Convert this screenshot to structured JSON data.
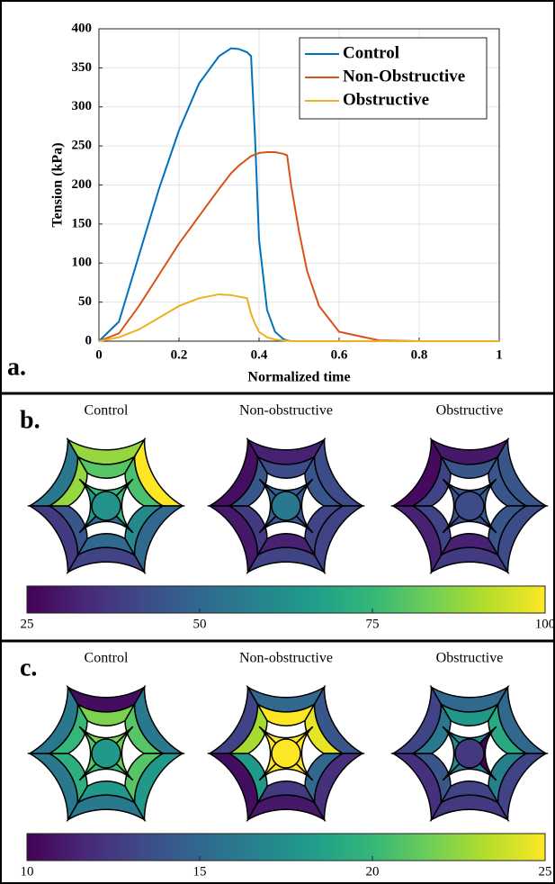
{
  "chart_data": [
    {
      "type": "line",
      "label": "a.",
      "xlabel": "Normalized time",
      "ylabel": "Tension (kPa)",
      "x": [
        0,
        0.05,
        0.1,
        0.15,
        0.2,
        0.25,
        0.3,
        0.33,
        0.35,
        0.37,
        0.38,
        0.39,
        0.4,
        0.42,
        0.44,
        0.46,
        0.47,
        0.48,
        0.5,
        0.52,
        0.55,
        0.6,
        0.7,
        0.8,
        1
      ],
      "series": [
        {
          "name": "Control",
          "color": "#0072bd",
          "values": [
            0,
            25,
            110,
            195,
            270,
            330,
            365,
            375,
            374,
            370,
            365,
            260,
            130,
            40,
            12,
            3,
            1,
            0,
            0,
            0,
            0,
            0,
            0,
            0,
            0
          ]
        },
        {
          "name": "Non-Obstructive",
          "color": "#d95319",
          "values": [
            0,
            10,
            45,
            85,
            125,
            160,
            195,
            215,
            225,
            233,
            237,
            239,
            241,
            242,
            242,
            240,
            238,
            200,
            140,
            90,
            45,
            12,
            1,
            0,
            0
          ]
        },
        {
          "name": "Obstructive",
          "color": "#edb120",
          "values": [
            0,
            5,
            15,
            30,
            45,
            55,
            60,
            59,
            57,
            55,
            35,
            22,
            12,
            5,
            2,
            1,
            0.5,
            0,
            0,
            0,
            0,
            0,
            0,
            0,
            0
          ]
        }
      ],
      "xlim": [
        0,
        1
      ],
      "xticks": [
        0,
        0.2,
        0.4,
        0.6,
        0.8,
        1
      ],
      "ylim": [
        0,
        400
      ],
      "yticks": [
        0,
        50,
        100,
        150,
        200,
        250,
        300,
        350,
        400
      ],
      "grid": true,
      "legend": "upper right"
    },
    {
      "type": "bullseye",
      "label": "b.",
      "colormap": "viridis",
      "clim": [
        25,
        100
      ],
      "cticks": [
        25,
        50,
        75,
        100
      ],
      "plots": [
        {
          "title": "Control",
          "basal": [
            88,
            100,
            50,
            40,
            38,
            55
          ],
          "mid": [
            80,
            78,
            60,
            50,
            45,
            88
          ],
          "apical": [
            75,
            75,
            50,
            65
          ],
          "apex": 63
        },
        {
          "title": "Non-obstructive",
          "basal": [
            32,
            42,
            40,
            40,
            30,
            28
          ],
          "mid": [
            42,
            45,
            40,
            32,
            38,
            45
          ],
          "apical": [
            48,
            45,
            45,
            47
          ],
          "apex": 55
        },
        {
          "title": "Obstructive",
          "basal": [
            30,
            45,
            42,
            38,
            32,
            27
          ],
          "mid": [
            45,
            45,
            45,
            32,
            40,
            40
          ],
          "apical": [
            45,
            47,
            42,
            44
          ],
          "apex": 42
        }
      ]
    },
    {
      "type": "bullseye",
      "label": "c.",
      "colormap": "viridis",
      "clim": [
        10,
        25
      ],
      "cticks": [
        10,
        15,
        20,
        25
      ],
      "plots": [
        {
          "title": "Control",
          "basal": [
            10.5,
            16,
            18,
            16,
            16,
            16
          ],
          "mid": [
            22,
            21,
            21,
            18,
            19.5,
            20
          ],
          "apical": [
            22,
            21.5,
            20,
            21
          ],
          "apex": 18
        },
        {
          "title": "Non-obstructive",
          "basal": [
            15,
            14,
            12,
            11,
            10.5,
            13
          ],
          "mid": [
            25,
            24.5,
            15,
            12.5,
            18,
            23
          ],
          "apical": [
            25,
            25,
            25,
            25
          ],
          "apex": 25
        },
        {
          "title": "Obstructive",
          "basal": [
            15,
            15,
            13,
            12.5,
            12,
            13
          ],
          "mid": [
            18,
            19,
            16.5,
            13,
            14,
            16
          ],
          "apical": [
            17,
            10,
            16,
            17
          ],
          "apex": 12.5
        }
      ]
    }
  ]
}
